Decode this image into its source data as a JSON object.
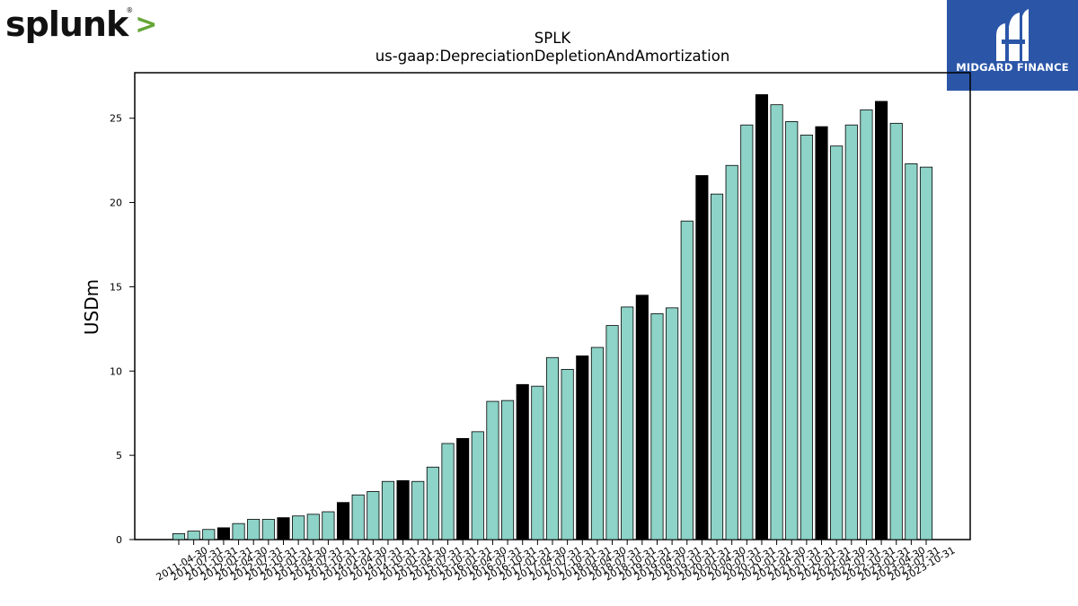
{
  "logos": {
    "splunk": {
      "text": "splunk",
      "chevron": ">",
      "registered": "®",
      "color_text": "#111111",
      "color_chevron": "#65a637"
    },
    "midgard": {
      "text": "MIDGARD FINANCE",
      "background": "#2b56a8"
    }
  },
  "chart_data": {
    "type": "bar",
    "title": "SPLK",
    "subtitle": "us-gaap:DepreciationDepletionAndAmortization",
    "xlabel": "",
    "ylabel": "USDm",
    "ylim": [
      0,
      27.7
    ],
    "yticks": [
      0,
      5,
      10,
      15,
      20,
      25
    ],
    "grid": false,
    "colors": {
      "quarter": "#8dd3c7",
      "fiscal_year_end": "#000000",
      "edge": "#000000"
    },
    "categories": [
      "2011-04-30",
      "2011-07-31",
      "2011-10-31",
      "2012-01-31",
      "2012-04-30",
      "2012-07-31",
      "2012-10-31",
      "2013-01-31",
      "2013-04-30",
      "2013-07-31",
      "2013-10-31",
      "2014-01-31",
      "2014-04-30",
      "2014-07-31",
      "2014-10-31",
      "2015-01-31",
      "2015-04-30",
      "2015-07-31",
      "2015-10-31",
      "2016-01-31",
      "2016-04-30",
      "2016-07-31",
      "2016-10-31",
      "2017-01-31",
      "2017-04-30",
      "2017-07-31",
      "2017-10-31",
      "2018-01-31",
      "2018-04-30",
      "2018-07-31",
      "2018-10-31",
      "2019-01-31",
      "2019-04-30",
      "2019-07-31",
      "2019-10-31",
      "2020-01-31",
      "2020-04-30",
      "2020-07-31",
      "2020-10-31",
      "2021-01-31",
      "2021-04-30",
      "2021-07-31",
      "2021-10-31",
      "2022-01-31",
      "2022-04-30",
      "2022-07-31",
      "2022-10-31",
      "2023-01-31",
      "2023-04-30",
      "2023-07-31",
      "2023-10-31"
    ],
    "values": [
      0.35,
      0.5,
      0.6,
      0.7,
      0.95,
      1.2,
      1.2,
      1.3,
      1.4,
      1.5,
      1.65,
      2.2,
      2.65,
      2.85,
      3.45,
      3.5,
      3.45,
      4.3,
      5.7,
      6.0,
      6.4,
      8.2,
      8.25,
      9.2,
      9.1,
      10.8,
      10.1,
      10.9,
      11.4,
      12.7,
      13.8,
      14.5,
      13.4,
      13.75,
      18.9,
      21.6,
      20.5,
      22.2,
      24.6,
      26.4,
      25.8,
      24.8,
      24.0,
      24.5,
      23.35,
      24.6,
      25.5,
      26.0,
      24.7,
      22.3,
      22.1
    ],
    "highlight": [
      false,
      false,
      false,
      true,
      false,
      false,
      false,
      true,
      false,
      false,
      false,
      true,
      false,
      false,
      false,
      true,
      false,
      false,
      false,
      true,
      false,
      false,
      false,
      true,
      false,
      false,
      false,
      true,
      false,
      false,
      false,
      true,
      false,
      false,
      false,
      true,
      false,
      false,
      false,
      true,
      false,
      false,
      false,
      true,
      false,
      false,
      false,
      true,
      false,
      false,
      false
    ]
  }
}
